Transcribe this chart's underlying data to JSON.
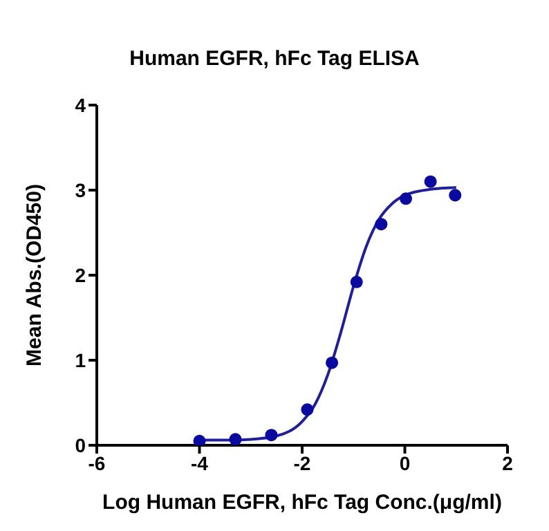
{
  "chart_data": {
    "type": "scatter",
    "title": "Human EGFR, hFc Tag ELISA",
    "xlabel": "Log Human EGFR, hFc Tag Conc.(μg/ml)",
    "ylabel": "Mean Abs.(OD450)",
    "xlim": [
      -6,
      2
    ],
    "xticks": [
      -6,
      -4,
      -2,
      0,
      2
    ],
    "ylim": [
      0,
      4
    ],
    "yticks": [
      0,
      1,
      2,
      3,
      4
    ],
    "grid": false,
    "series": [
      {
        "color": "#0a0aa0",
        "marker": "circle",
        "x": [
          -4,
          -3.3,
          -2.6,
          -1.9,
          -1.42,
          -0.94,
          -0.46,
          0.02,
          0.5,
          0.98
        ],
        "values": [
          0.05,
          0.07,
          0.12,
          0.42,
          0.97,
          1.92,
          2.6,
          2.9,
          3.1,
          2.94
        ]
      },
      {
        "type": "line",
        "color": "#1f1f99",
        "marker": "none",
        "line_style": "solid",
        "x": [
          -4,
          -3.5,
          -3,
          -2.5,
          -2,
          -1.75,
          -1.5,
          -1.25,
          -1,
          -0.75,
          -0.5,
          -0.25,
          0,
          0.5,
          1
        ],
        "values": [
          0.06,
          0.06,
          0.07,
          0.11,
          0.28,
          0.48,
          0.83,
          1.32,
          1.87,
          2.34,
          2.66,
          2.84,
          2.94,
          3.01,
          3.03
        ]
      }
    ]
  }
}
